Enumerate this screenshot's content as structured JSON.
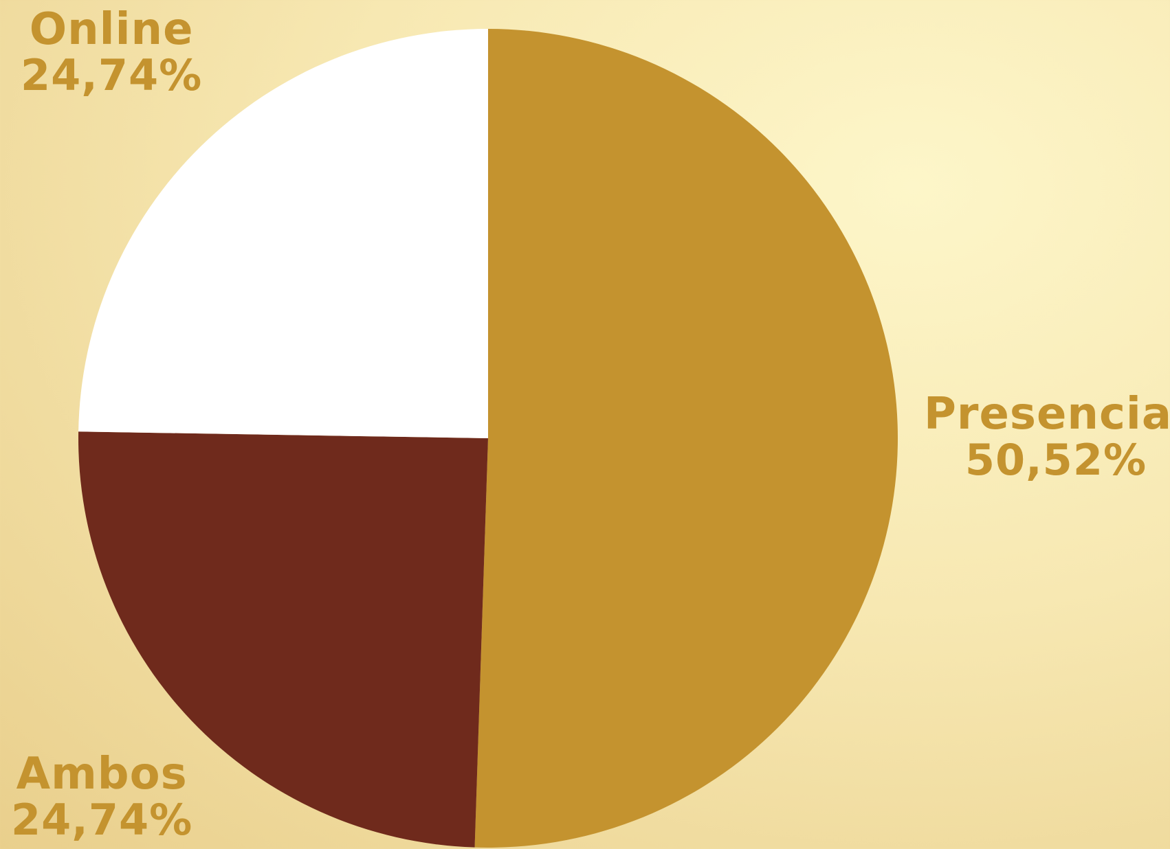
{
  "chart_data": {
    "type": "pie",
    "slices": [
      {
        "name": "Presencial",
        "value": 50.52,
        "label": "50,52%",
        "color": "#c4932f"
      },
      {
        "name": "Ambos",
        "value": 24.74,
        "label": "24,74%",
        "color": "#6f2a1c"
      },
      {
        "name": "Online",
        "value": 24.74,
        "label": "24,74%",
        "color": "#ffffff"
      }
    ],
    "start_angle_deg": 0,
    "direction": "clockwise",
    "legend": "none",
    "labels_position": "outside"
  },
  "colors": {
    "label_text": "#c4932f",
    "background_light": "#fdf6c9",
    "background_dark": "#e9cf8c"
  }
}
